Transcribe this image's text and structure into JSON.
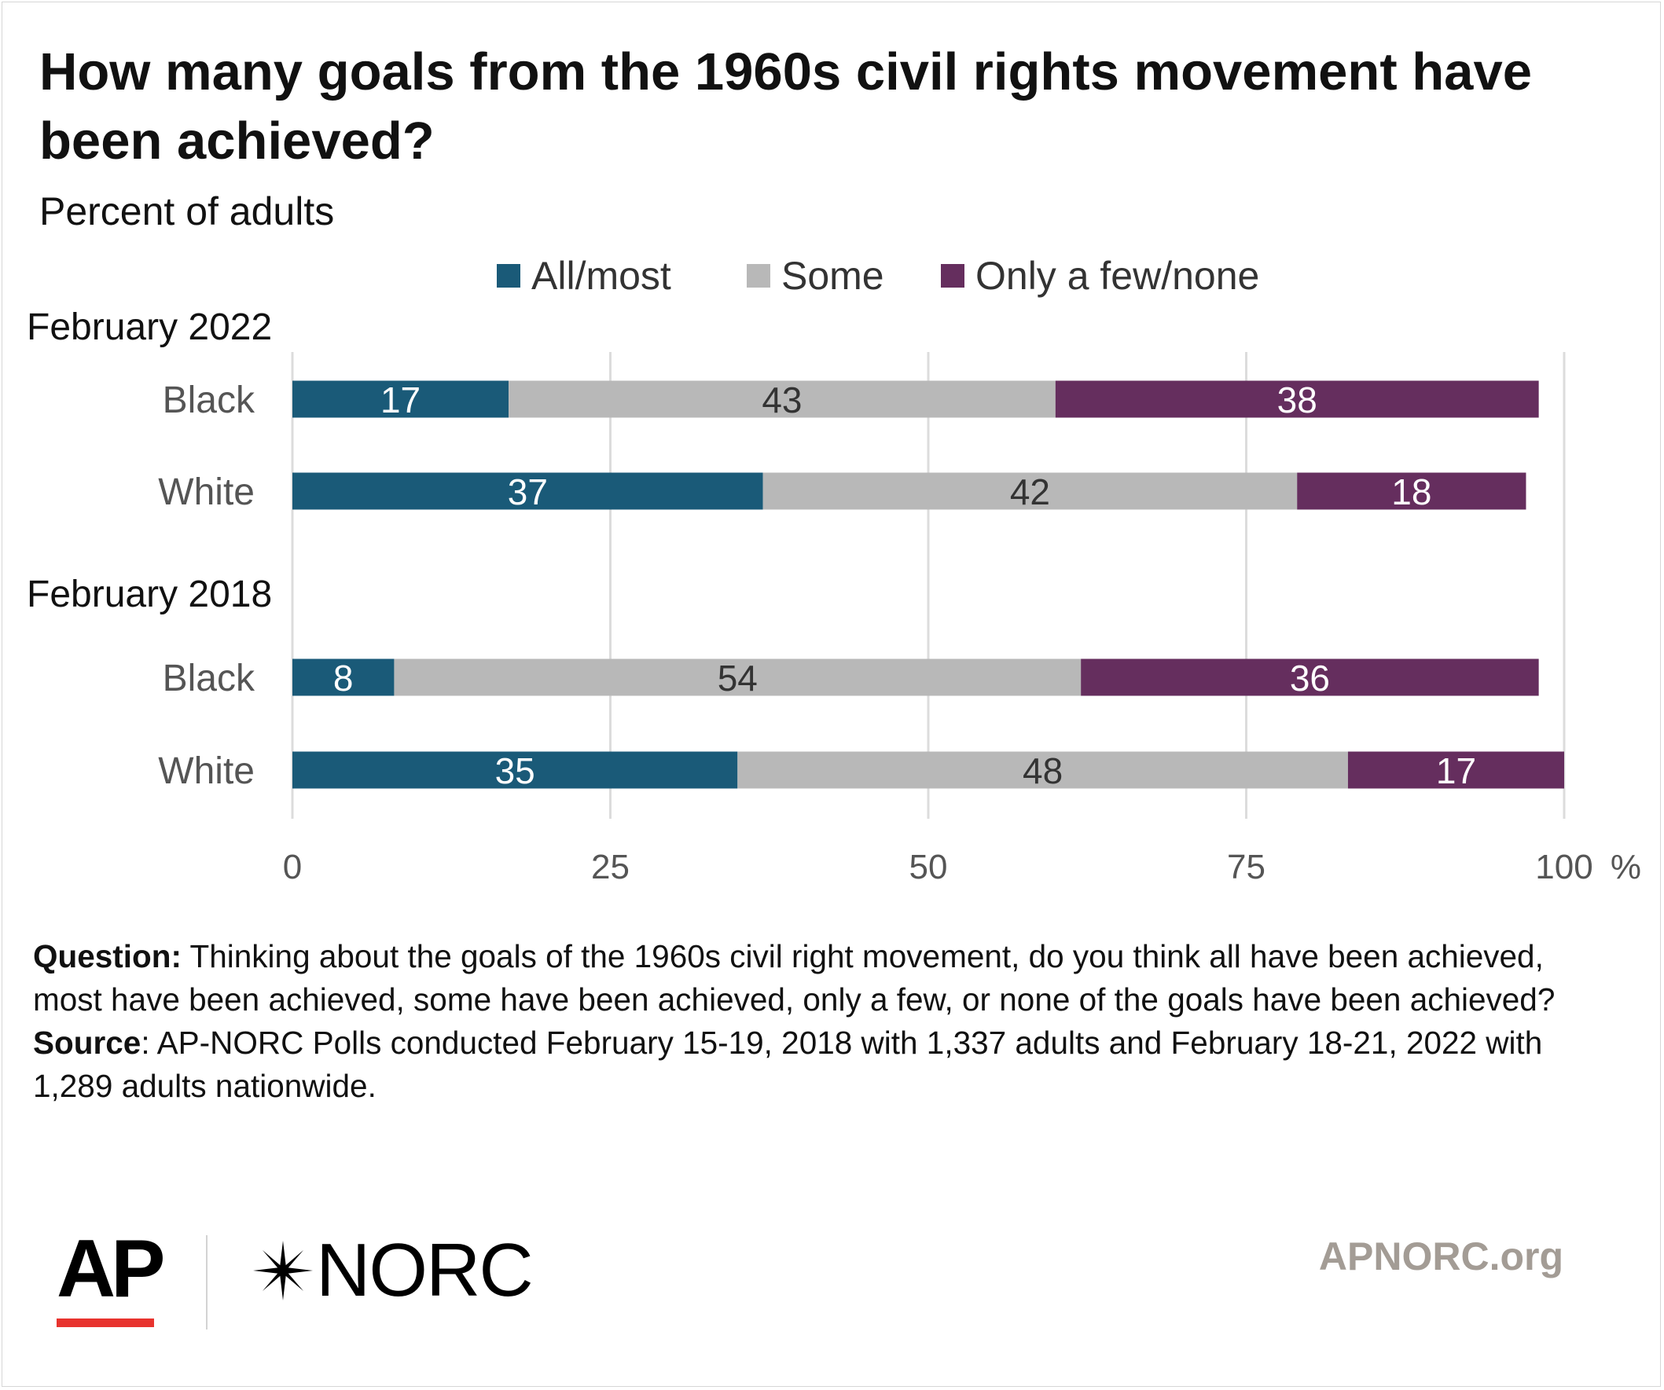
{
  "title": "How many goals from the 1960s civil rights movement have been achieved?",
  "subtitle": "Percent of adults",
  "legend": [
    {
      "label": "All/most",
      "color": "#1a5a78"
    },
    {
      "label": "Some",
      "color": "#b8b8b8"
    },
    {
      "label": "Only a few/none",
      "color": "#652e5e"
    }
  ],
  "chart_data": {
    "type": "bar",
    "orientation": "horizontal",
    "stacked": true,
    "groups": [
      {
        "label": "February 2022",
        "rows": [
          {
            "category": "Black",
            "values": [
              17,
              43,
              38
            ]
          },
          {
            "category": "White",
            "values": [
              37,
              42,
              18
            ]
          }
        ]
      },
      {
        "label": "February 2018",
        "rows": [
          {
            "category": "Black",
            "values": [
              8,
              54,
              36
            ]
          },
          {
            "category": "White",
            "values": [
              35,
              48,
              17
            ]
          }
        ]
      }
    ],
    "series": [
      {
        "name": "All/most",
        "color": "#1a5a78",
        "label_color": "#ffffff"
      },
      {
        "name": "Some",
        "color": "#b8b8b8",
        "label_color": "#333333"
      },
      {
        "name": "Only a few/none",
        "color": "#652e5e",
        "label_color": "#ffffff"
      }
    ],
    "xlim": [
      0,
      100
    ],
    "xticks": [
      0,
      25,
      50,
      75,
      100
    ],
    "xunit": "%",
    "grid": true,
    "legend_position": "top"
  },
  "notes": {
    "question_label": "Question:",
    "question_text": " Thinking about the goals of the 1960s civil right movement, do you think all have been achieved, most have been achieved, some have been achieved, only a few, or none of the goals have been achieved?",
    "source_label": "Source",
    "source_text": ": AP-NORC Polls conducted February 15-19, 2018 with 1,337 adults and February 18-21, 2022 with 1,289 adults nationwide."
  },
  "footer": {
    "ap_logo": "AP",
    "norc_logo": "NORC",
    "site": "APNORC.org"
  }
}
